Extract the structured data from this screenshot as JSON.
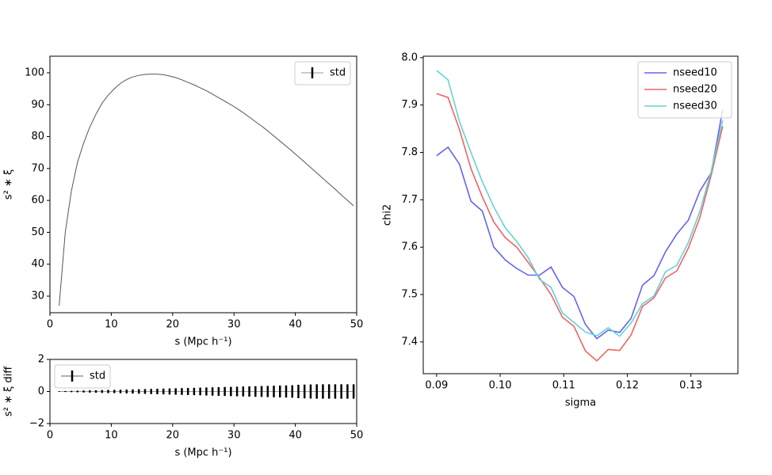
{
  "chart_data": [
    {
      "type": "errorbar",
      "ylabel": "s² ∗ ξ",
      "xlabel": "s (Mpc h⁻¹)",
      "xlim": [
        0,
        50
      ],
      "xticks": [
        0,
        10,
        20,
        30,
        40,
        50
      ],
      "ylim": [
        24.8,
        105.2
      ],
      "yticks": [
        30,
        40,
        50,
        60,
        70,
        80,
        90,
        100
      ],
      "legend": "upper right",
      "x": [
        1.5,
        2.5,
        3.5,
        4.5,
        5.5,
        6.5,
        7.5,
        8.5,
        9.5,
        10.5,
        11.5,
        12.5,
        13.5,
        14.5,
        15.5,
        16.5,
        17.5,
        18.5,
        19.5,
        20.5,
        21.5,
        22.5,
        23.5,
        24.5,
        25.5,
        26.5,
        27.5,
        28.5,
        29.5,
        30.5,
        31.5,
        32.5,
        33.5,
        34.5,
        35.5,
        36.5,
        37.5,
        38.5,
        39.5,
        40.5,
        41.5,
        42.5,
        43.5,
        44.5,
        45.5,
        46.5,
        47.5,
        48.5,
        49.5
      ],
      "series": [
        {
          "name": "std",
          "color": "#555555",
          "values": [
            27,
            50,
            63,
            72,
            78,
            83,
            87,
            90.5,
            93,
            95,
            96.7,
            97.9,
            98.7,
            99.2,
            99.5,
            99.6,
            99.6,
            99.4,
            99,
            98.5,
            97.8,
            97,
            96.2,
            95.3,
            94.4,
            93.3,
            92.2,
            91.1,
            90,
            88.8,
            87.5,
            86.1,
            84.7,
            83.3,
            81.8,
            80.2,
            78.6,
            77,
            75.4,
            73.7,
            72,
            70.3,
            68.6,
            66.9,
            65.2,
            63.5,
            61.7,
            60,
            58.3
          ]
        }
      ]
    },
    {
      "type": "errorbar",
      "ylabel": "s² ∗ ξ diff",
      "xlabel": "s (Mpc h⁻¹)",
      "xlim": [
        0,
        50
      ],
      "xticks": [
        0,
        10,
        20,
        30,
        40,
        50
      ],
      "ylim": [
        -2,
        2
      ],
      "yticks": [
        {
          "value": -2,
          "label": "−2"
        },
        0,
        2
      ],
      "legend": "upper left",
      "x": [
        1.5,
        2.5,
        3.5,
        4.5,
        5.5,
        6.5,
        7.5,
        8.5,
        9.5,
        10.5,
        11.5,
        12.5,
        13.5,
        14.5,
        15.5,
        16.5,
        17.5,
        18.5,
        19.5,
        20.5,
        21.5,
        22.5,
        23.5,
        24.5,
        25.5,
        26.5,
        27.5,
        28.5,
        29.5,
        30.5,
        31.5,
        32.5,
        33.5,
        34.5,
        35.5,
        36.5,
        37.5,
        38.5,
        39.5,
        40.5,
        41.5,
        42.5,
        43.5,
        44.5,
        45.5,
        46.5,
        47.5,
        48.5,
        49.5
      ],
      "series": [
        {
          "name": "std",
          "color": "#000000",
          "values": [
            0,
            0,
            0,
            0,
            0,
            0,
            0,
            0,
            0,
            0,
            0,
            0,
            0,
            0,
            0,
            0,
            0,
            0,
            0,
            0,
            0,
            0,
            0,
            0,
            0,
            0,
            0,
            0,
            0,
            0,
            0,
            0,
            0,
            0,
            0,
            0,
            0,
            0,
            0,
            0,
            0,
            0,
            0,
            0,
            0,
            0,
            0,
            0,
            0
          ],
          "errors": [
            0.02,
            0.03,
            0.04,
            0.05,
            0.06,
            0.07,
            0.08,
            0.09,
            0.1,
            0.1,
            0.11,
            0.12,
            0.13,
            0.14,
            0.15,
            0.16,
            0.17,
            0.18,
            0.19,
            0.2,
            0.21,
            0.22,
            0.23,
            0.24,
            0.25,
            0.26,
            0.27,
            0.28,
            0.29,
            0.3,
            0.31,
            0.32,
            0.33,
            0.34,
            0.35,
            0.36,
            0.37,
            0.38,
            0.39,
            0.42,
            0.43,
            0.44,
            0.45,
            0.45,
            0.45,
            0.45,
            0.45,
            0.45,
            0.45
          ]
        }
      ]
    },
    {
      "type": "line",
      "ylabel": "chi2",
      "xlabel": "sigma",
      "xlim": [
        0.0879,
        0.1374
      ],
      "xticks": [
        0.09,
        {
          "value": 0.1,
          "label": "0.10"
        },
        0.11,
        0.12,
        0.13
      ],
      "ylim": [
        7.333,
        8.003
      ],
      "yticks": [
        7.4,
        7.5,
        7.6,
        7.7,
        7.8,
        7.9,
        {
          "value": 8,
          "label": "8.0"
        }
      ],
      "legend": "upper right",
      "x": [
        0.09,
        0.0918,
        0.0936,
        0.0954,
        0.0972,
        0.099,
        0.1008,
        0.1026,
        0.1044,
        0.1062,
        0.108,
        0.1098,
        0.1116,
        0.1134,
        0.1152,
        0.117,
        0.1188,
        0.1206,
        0.1224,
        0.1242,
        0.126,
        0.1278,
        0.1296,
        0.1314,
        0.1332,
        0.135
      ],
      "series": [
        {
          "name": "nseed10",
          "color": "#6464ee",
          "values": [
            7.793,
            7.811,
            7.775,
            7.697,
            7.676,
            7.6,
            7.573,
            7.555,
            7.541,
            7.541,
            7.558,
            7.515,
            7.496,
            7.437,
            7.407,
            7.425,
            7.42,
            7.45,
            7.52,
            7.54,
            7.59,
            7.628,
            7.657,
            7.718,
            7.757,
            7.89
          ]
        },
        {
          "name": "nseed20",
          "color": "#ee6464",
          "values": [
            7.924,
            7.916,
            7.848,
            7.766,
            7.706,
            7.653,
            7.62,
            7.6,
            7.568,
            7.535,
            7.5,
            7.452,
            7.433,
            7.381,
            7.36,
            7.384,
            7.382,
            7.415,
            7.475,
            7.493,
            7.535,
            7.55,
            7.598,
            7.662,
            7.752,
            7.855
          ]
        },
        {
          "name": "nseed30",
          "color": "#64d2d2",
          "values": [
            7.973,
            7.953,
            7.865,
            7.8,
            7.738,
            7.685,
            7.641,
            7.612,
            7.578,
            7.532,
            7.515,
            7.461,
            7.441,
            7.421,
            7.413,
            7.43,
            7.412,
            7.44,
            7.481,
            7.497,
            7.548,
            7.562,
            7.61,
            7.675,
            7.76,
            7.868
          ]
        }
      ]
    }
  ]
}
